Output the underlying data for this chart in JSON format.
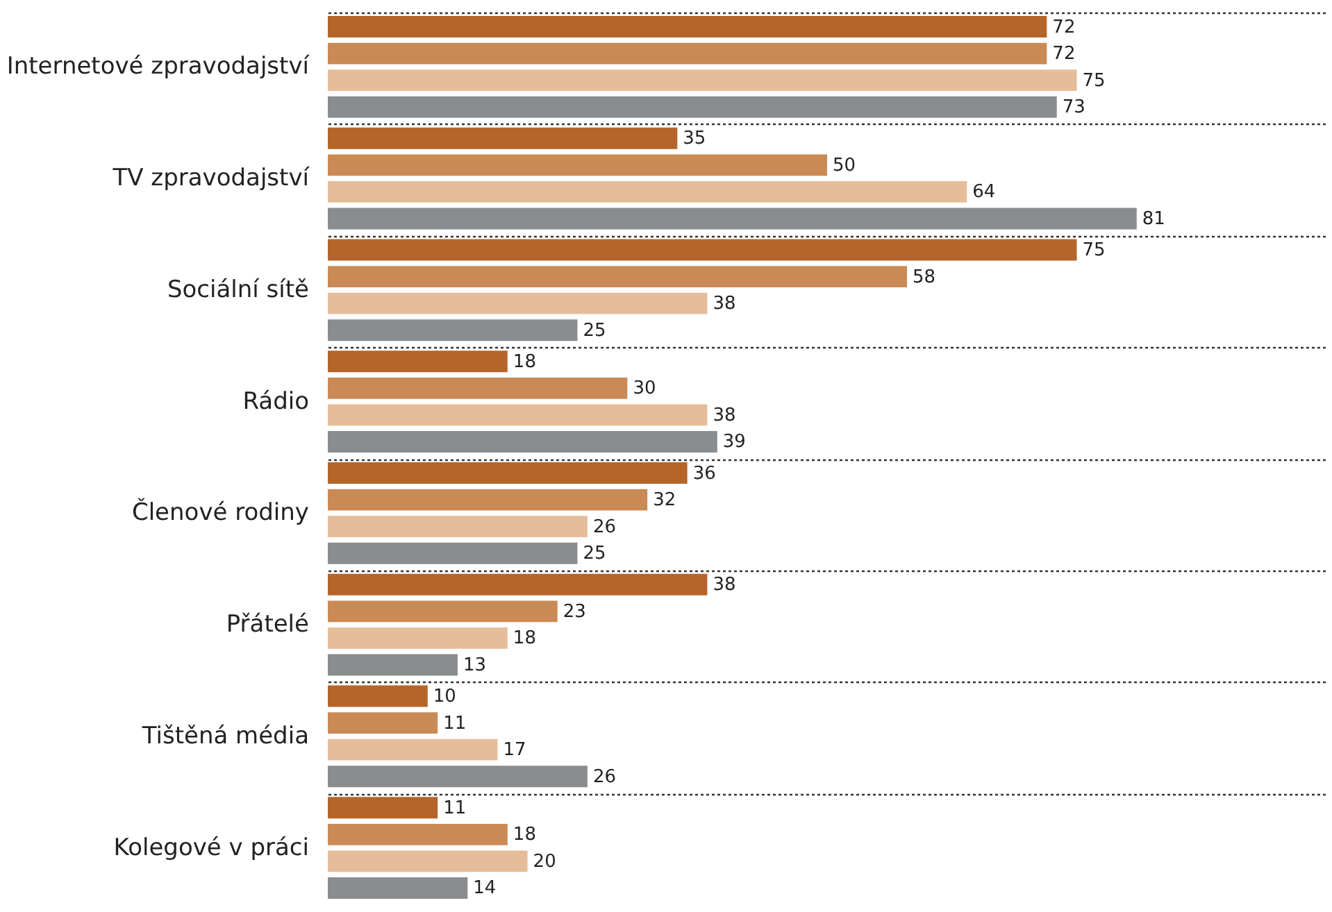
{
  "chart_data": {
    "type": "bar",
    "orientation": "horizontal",
    "categories": [
      "Internetové zpravodajství",
      "TV zpravodajství",
      "Sociální sítě",
      "Rádio",
      "Členové rodiny",
      "Přátelé",
      "Tištěná média",
      "Kolegové v práci"
    ],
    "series": [
      {
        "color": "#b5652a",
        "values": [
          72,
          35,
          75,
          18,
          36,
          38,
          10,
          11
        ]
      },
      {
        "color": "#c98a56",
        "values": [
          72,
          50,
          58,
          30,
          32,
          23,
          11,
          18
        ]
      },
      {
        "color": "#e6bd9a",
        "values": [
          75,
          64,
          38,
          38,
          26,
          18,
          17,
          20
        ]
      },
      {
        "color": "#8a8d90",
        "values": [
          73,
          81,
          25,
          39,
          25,
          13,
          26,
          14
        ]
      }
    ],
    "xlim": [
      0,
      100
    ],
    "data_labels": true,
    "grid": "y",
    "legend": false,
    "tick_labels": "y"
  }
}
